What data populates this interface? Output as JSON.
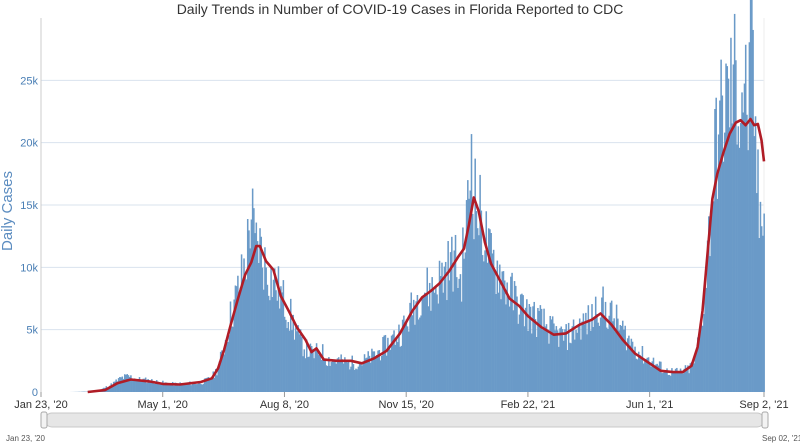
{
  "chart_data": {
    "type": "bar",
    "title": "Daily Trends in Number of COVID-19 Cases in Florida Reported to CDC",
    "xlabel": "",
    "ylabel": "Daily Cases",
    "x_range": [
      "2020-01-23",
      "2021-09-02"
    ],
    "ylim": [
      0,
      30000
    ],
    "y_ticks": [
      0,
      5000,
      10000,
      15000,
      20000,
      25000
    ],
    "y_tick_labels": [
      "0",
      "5k",
      "10k",
      "15k",
      "20k",
      "25k"
    ],
    "x_ticks": [
      {
        "date": "2020-01-23",
        "label": "Jan 23, '20"
      },
      {
        "date": "2020-05-01",
        "label": "May 1, '20"
      },
      {
        "date": "2020-08-08",
        "label": "Aug 8, '20"
      },
      {
        "date": "2020-11-15",
        "label": "Nov 15, '20"
      },
      {
        "date": "2021-02-22",
        "label": "Feb 22, '21"
      },
      {
        "date": "2021-06-01",
        "label": "Jun 1, '21"
      },
      {
        "date": "2021-09-02",
        "label": "Sep 2, '21"
      }
    ],
    "grid": true,
    "series": [
      {
        "type": "bar",
        "color": "#6a9ac8",
        "daily_cases": [
          [
            "2020-02-15",
            0
          ],
          [
            "2020-03-01",
            30
          ],
          [
            "2020-03-10",
            120
          ],
          [
            "2020-03-20",
            600
          ],
          [
            "2020-03-28",
            1150
          ],
          [
            "2020-04-03",
            1300
          ],
          [
            "2020-04-10",
            1050
          ],
          [
            "2020-04-20",
            950
          ],
          [
            "2020-05-01",
            750
          ],
          [
            "2020-05-10",
            650
          ],
          [
            "2020-05-20",
            700
          ],
          [
            "2020-06-01",
            750
          ],
          [
            "2020-06-10",
            1200
          ],
          [
            "2020-06-15",
            2000
          ],
          [
            "2020-06-20",
            3800
          ],
          [
            "2020-06-25",
            6200
          ],
          [
            "2020-06-30",
            8000
          ],
          [
            "2020-07-05",
            9800
          ],
          [
            "2020-07-08",
            11200
          ],
          [
            "2020-07-12",
            15200
          ],
          [
            "2020-07-15",
            11900
          ],
          [
            "2020-07-18",
            12500
          ],
          [
            "2020-07-22",
            10800
          ],
          [
            "2020-07-28",
            9500
          ],
          [
            "2020-08-03",
            8500
          ],
          [
            "2020-08-08",
            7400
          ],
          [
            "2020-08-13",
            6200
          ],
          [
            "2020-08-20",
            4300
          ],
          [
            "2020-08-26",
            3500
          ],
          [
            "2020-09-01",
            3100
          ],
          [
            "2020-09-06",
            3500
          ],
          [
            "2020-09-12",
            2700
          ],
          [
            "2020-09-20",
            2600
          ],
          [
            "2020-09-30",
            2400
          ],
          [
            "2020-10-10",
            2500
          ],
          [
            "2020-10-20",
            3000
          ],
          [
            "2020-10-30",
            3900
          ],
          [
            "2020-11-10",
            5000
          ],
          [
            "2020-11-15",
            5600
          ],
          [
            "2020-11-20",
            7000
          ],
          [
            "2020-11-28",
            8600
          ],
          [
            "2020-12-05",
            8300
          ],
          [
            "2020-12-12",
            9300
          ],
          [
            "2020-12-18",
            10200
          ],
          [
            "2020-12-24",
            11000
          ],
          [
            "2020-12-29",
            9000
          ],
          [
            "2021-01-02",
            13000
          ],
          [
            "2021-01-05",
            16000
          ],
          [
            "2021-01-07",
            21000
          ],
          [
            "2021-01-09",
            16800
          ],
          [
            "2021-01-12",
            15000
          ],
          [
            "2021-01-16",
            14000
          ],
          [
            "2021-01-22",
            11000
          ],
          [
            "2021-01-30",
            10000
          ],
          [
            "2021-02-08",
            8100
          ],
          [
            "2021-02-16",
            7100
          ],
          [
            "2021-02-22",
            6500
          ],
          [
            "2021-03-05",
            5800
          ],
          [
            "2021-03-15",
            4900
          ],
          [
            "2021-03-25",
            4500
          ],
          [
            "2021-04-05",
            5500
          ],
          [
            "2021-04-15",
            6000
          ],
          [
            "2021-04-20",
            7400
          ],
          [
            "2021-04-26",
            6800
          ],
          [
            "2021-05-05",
            5800
          ],
          [
            "2021-05-15",
            4300
          ],
          [
            "2021-05-25",
            3100
          ],
          [
            "2021-06-05",
            2400
          ],
          [
            "2021-06-15",
            1700
          ],
          [
            "2021-06-25",
            1600
          ],
          [
            "2021-07-03",
            1900
          ],
          [
            "2021-07-08",
            2600
          ],
          [
            "2021-07-12",
            5200
          ],
          [
            "2021-07-15",
            7500
          ],
          [
            "2021-07-18",
            11500
          ],
          [
            "2021-07-21",
            15500
          ],
          [
            "2021-07-24",
            19500
          ],
          [
            "2021-07-28",
            22000
          ],
          [
            "2021-08-01",
            23500
          ],
          [
            "2021-08-05",
            24500
          ],
          [
            "2021-08-09",
            26000
          ],
          [
            "2021-08-13",
            24000
          ],
          [
            "2021-08-16",
            25500
          ],
          [
            "2021-08-20",
            23000
          ],
          [
            "2021-08-23",
            27800
          ],
          [
            "2021-08-26",
            20500
          ],
          [
            "2021-08-29",
            14000
          ],
          [
            "2021-09-02",
            17500
          ]
        ]
      },
      {
        "type": "line",
        "color": "#b01c26",
        "rolling_average": [
          [
            "2020-03-01",
            0
          ],
          [
            "2020-03-15",
            150
          ],
          [
            "2020-03-25",
            700
          ],
          [
            "2020-04-05",
            1000
          ],
          [
            "2020-04-20",
            850
          ],
          [
            "2020-05-01",
            650
          ],
          [
            "2020-05-15",
            600
          ],
          [
            "2020-06-01",
            800
          ],
          [
            "2020-06-10",
            1100
          ],
          [
            "2020-06-15",
            1900
          ],
          [
            "2020-06-20",
            3400
          ],
          [
            "2020-06-25",
            5300
          ],
          [
            "2020-07-01",
            7400
          ],
          [
            "2020-07-07",
            9400
          ],
          [
            "2020-07-12",
            10400
          ],
          [
            "2020-07-16",
            11700
          ],
          [
            "2020-07-19",
            11700
          ],
          [
            "2020-07-24",
            10500
          ],
          [
            "2020-07-30",
            9800
          ],
          [
            "2020-08-05",
            7700
          ],
          [
            "2020-08-12",
            6400
          ],
          [
            "2020-08-18",
            5200
          ],
          [
            "2020-08-25",
            4200
          ],
          [
            "2020-08-30",
            3200
          ],
          [
            "2020-09-03",
            3500
          ],
          [
            "2020-09-09",
            2600
          ],
          [
            "2020-09-20",
            2500
          ],
          [
            "2020-10-01",
            2500
          ],
          [
            "2020-10-10",
            2300
          ],
          [
            "2020-10-20",
            2700
          ],
          [
            "2020-10-30",
            3300
          ],
          [
            "2020-11-10",
            4700
          ],
          [
            "2020-11-20",
            6500
          ],
          [
            "2020-11-28",
            7600
          ],
          [
            "2020-12-05",
            8100
          ],
          [
            "2020-12-12",
            8700
          ],
          [
            "2020-12-20",
            9700
          ],
          [
            "2020-12-27",
            10800
          ],
          [
            "2021-01-01",
            11500
          ],
          [
            "2021-01-05",
            13400
          ],
          [
            "2021-01-09",
            15600
          ],
          [
            "2021-01-13",
            14500
          ],
          [
            "2021-01-18",
            12000
          ],
          [
            "2021-01-23",
            10300
          ],
          [
            "2021-01-30",
            9000
          ],
          [
            "2021-02-07",
            7500
          ],
          [
            "2021-02-15",
            6900
          ],
          [
            "2021-02-22",
            6100
          ],
          [
            "2021-03-05",
            5200
          ],
          [
            "2021-03-15",
            4600
          ],
          [
            "2021-03-25",
            4700
          ],
          [
            "2021-04-05",
            5400
          ],
          [
            "2021-04-15",
            5800
          ],
          [
            "2021-04-22",
            6300
          ],
          [
            "2021-05-01",
            5400
          ],
          [
            "2021-05-10",
            4200
          ],
          [
            "2021-05-20",
            3100
          ],
          [
            "2021-06-01",
            2300
          ],
          [
            "2021-06-10",
            1700
          ],
          [
            "2021-06-20",
            1600
          ],
          [
            "2021-06-28",
            1600
          ],
          [
            "2021-07-05",
            2100
          ],
          [
            "2021-07-10",
            3600
          ],
          [
            "2021-07-14",
            6500
          ],
          [
            "2021-07-18",
            11000
          ],
          [
            "2021-07-22",
            15500
          ],
          [
            "2021-07-26",
            17500
          ],
          [
            "2021-07-31",
            19200
          ],
          [
            "2021-08-05",
            20700
          ],
          [
            "2021-08-10",
            21600
          ],
          [
            "2021-08-14",
            21800
          ],
          [
            "2021-08-18",
            21400
          ],
          [
            "2021-08-22",
            21900
          ],
          [
            "2021-08-25",
            21400
          ],
          [
            "2021-08-28",
            21500
          ],
          [
            "2021-08-31",
            20200
          ],
          [
            "2021-09-02",
            18500
          ]
        ]
      }
    ]
  },
  "range_slider": {
    "start_label": "Jan 23, '20",
    "end_label": "Sep 02, '21"
  }
}
